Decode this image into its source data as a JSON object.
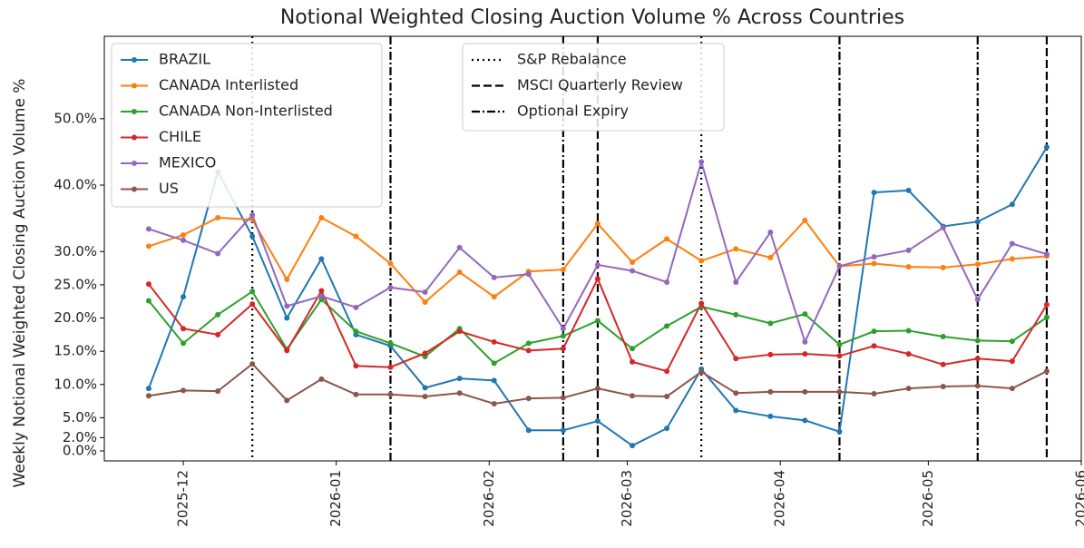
{
  "chart_data": {
    "type": "line",
    "title": "Notional Weighted Closing Auction Volume % Across Countries",
    "ylabel": "Weekly Notional Weighted Closing Auction Volume %",
    "x": [
      "2025-11-24",
      "2025-12-01",
      "2025-12-08",
      "2025-12-15",
      "2025-12-22",
      "2025-12-29",
      "2026-01-05",
      "2026-01-12",
      "2026-01-19",
      "2026-01-26",
      "2026-02-02",
      "2026-02-09",
      "2026-02-16",
      "2026-02-23",
      "2026-03-02",
      "2026-03-09",
      "2026-03-16",
      "2026-03-23",
      "2026-03-30",
      "2026-04-06",
      "2026-04-13",
      "2026-04-20",
      "2026-04-27",
      "2026-05-04",
      "2026-05-11",
      "2026-05-18",
      "2026-05-25"
    ],
    "series": [
      {
        "name": "BRAZIL",
        "color": "#1f77b4",
        "values": [
          9.4,
          23.2,
          42,
          32.3,
          20.0,
          28.9,
          17.5,
          15.8,
          9.5,
          10.9,
          10.6,
          3.1,
          3.1,
          4.5,
          0.8,
          3.4,
          12.3,
          6.1,
          5.2,
          4.6,
          2.9,
          38.9,
          39.2,
          33.8,
          34.5,
          37.1,
          45.7
        ]
      },
      {
        "name": "CANADA Interlisted",
        "color": "#ff7f0e",
        "values": [
          30.8,
          32.5,
          35.1,
          34.8,
          25.8,
          35.1,
          32.3,
          28.2,
          22.4,
          26.9,
          23.2,
          27.0,
          27.3,
          34.2,
          28.4,
          31.9,
          28.6,
          30.4,
          29.1,
          34.7,
          27.8,
          28.2,
          27.7,
          27.6,
          28.1,
          28.9,
          29.3
        ]
      },
      {
        "name": "CANADA Non-Interlisted",
        "color": "#2ca02c",
        "values": [
          22.6,
          16.2,
          20.5,
          24.0,
          15.3,
          22.8,
          18.0,
          16.2,
          14.2,
          18.4,
          13.2,
          16.2,
          17.3,
          19.6,
          15.4,
          18.8,
          21.7,
          20.5,
          19.2,
          20.6,
          16.0,
          18.0,
          18.1,
          17.2,
          16.6,
          16.5,
          20.1
        ]
      },
      {
        "name": "CHILE",
        "color": "#d62728",
        "values": [
          25.1,
          18.4,
          17.5,
          22.1,
          15.1,
          24.1,
          12.8,
          12.6,
          14.7,
          18.0,
          16.4,
          15.1,
          15.4,
          25.9,
          13.4,
          12.0,
          22.2,
          13.9,
          14.5,
          14.6,
          14.3,
          15.8,
          14.6,
          13.0,
          13.9,
          13.5,
          22.0
        ]
      },
      {
        "name": "MEXICO",
        "color": "#9467bd",
        "values": [
          33.4,
          31.7,
          29.7,
          35.5,
          21.8,
          23.3,
          21.6,
          24.6,
          23.9,
          30.6,
          26.1,
          26.6,
          18.4,
          28.0,
          27.1,
          25.4,
          43.5,
          25.4,
          32.9,
          16.4,
          27.8,
          29.2,
          30.2,
          33.6,
          22.8,
          31.2,
          29.6
        ]
      },
      {
        "name": "US",
        "color": "#8c564b",
        "values": [
          8.3,
          9.1,
          9.0,
          13.1,
          7.6,
          10.8,
          8.5,
          8.5,
          8.2,
          8.7,
          7.1,
          7.9,
          8.0,
          9.4,
          8.3,
          8.2,
          11.9,
          8.7,
          8.9,
          8.9,
          8.9,
          8.6,
          9.4,
          9.7,
          9.8,
          9.4,
          12.0
        ]
      }
    ],
    "vlines": [
      {
        "name": "S&P Rebalance",
        "linestyle": "dotted",
        "color": "#000000",
        "x": [
          "2025-12-15",
          "2026-03-16"
        ]
      },
      {
        "name": "MSCI Quarterly Review",
        "linestyle": "dashed",
        "color": "#000000",
        "x": [
          "2026-02-23",
          "2026-05-25"
        ]
      },
      {
        "name": "Optional Expiry",
        "linestyle": "dashdot",
        "color": "#000000",
        "x": [
          "2026-01-12",
          "2026-02-16",
          "2026-04-13",
          "2026-05-11"
        ]
      }
    ],
    "xlim": [
      "2025-11-15",
      "2026-06-01"
    ],
    "xticks": [
      {
        "value": "2025-12-01",
        "label": "2025-12"
      },
      {
        "value": "2026-01-01",
        "label": "2026-01"
      },
      {
        "value": "2026-02-01",
        "label": "2026-02"
      },
      {
        "value": "2026-03-01",
        "label": "2026-03"
      },
      {
        "value": "2026-04-01",
        "label": "2026-04"
      },
      {
        "value": "2026-05-01",
        "label": "2026-05"
      },
      {
        "value": "2026-06-01",
        "label": "2026-06"
      }
    ],
    "ylim": [
      -1.5,
      62.4
    ],
    "yticks": [
      {
        "value": 0,
        "label": "0.0%"
      },
      {
        "value": 2,
        "label": "2.0%"
      },
      {
        "value": 5,
        "label": "5.0%"
      },
      {
        "value": 10,
        "label": "10.0%"
      },
      {
        "value": 15,
        "label": "15.0%"
      },
      {
        "value": 20,
        "label": "20.0%"
      },
      {
        "value": 25,
        "label": "25.0%"
      },
      {
        "value": 30,
        "label": "30.0%"
      },
      {
        "value": 40,
        "label": "40.0%"
      },
      {
        "value": 50,
        "label": "50.0%"
      }
    ],
    "legend": "upper left",
    "vline_legend": "upper center"
  }
}
